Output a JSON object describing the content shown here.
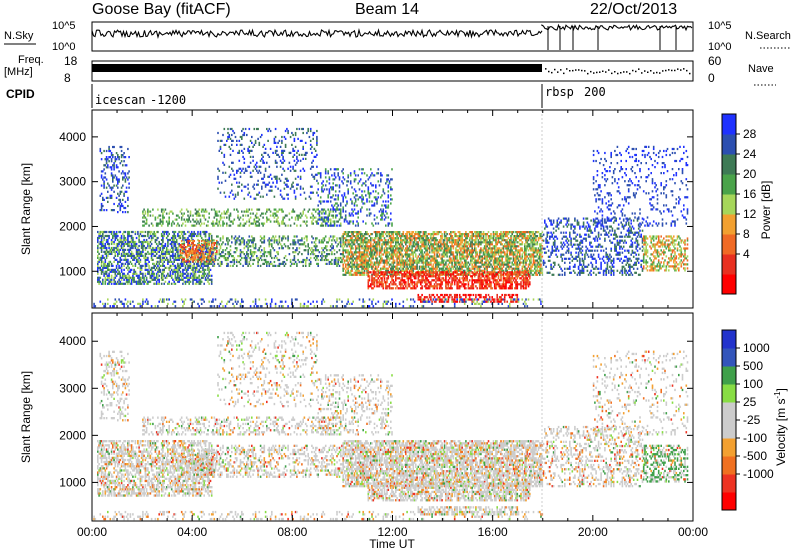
{
  "header": {
    "station": "Goose Bay (fitACF)",
    "beam": "Beam 14",
    "date": "22/Oct/2013"
  },
  "top_panels": {
    "nsky_label": "N.Sky",
    "nsearch_label": "N.Search",
    "nsky_ticks": [
      "10^5",
      "10^0"
    ],
    "nsearch_ticks": [
      "10^5",
      "10^0"
    ],
    "freq_label": "Freq.",
    "freq_unit": "[MHz]",
    "freq_ticks": [
      "18",
      "8"
    ],
    "nave_label": "Nave",
    "nave_ticks": [
      "60",
      "0"
    ],
    "cpid_label": "CPID",
    "cpid_segments": [
      {
        "name": "icescan",
        "id": "-1200"
      },
      {
        "name": "rbsp",
        "id": "200"
      }
    ]
  },
  "colors": {
    "power_scale": [
      "#1f32ff",
      "#2c4fb0",
      "#3e7a55",
      "#4aa34a",
      "#a6d65a",
      "#f2a030",
      "#f06a25",
      "#e83020",
      "#ff0000"
    ],
    "velocity_scale": [
      "#2233cc",
      "#3355bb",
      "#3fa04a",
      "#88dd44",
      "#cccccc",
      "#cccccc",
      "#f3a030",
      "#f07020",
      "#ee3322",
      "#ff0000"
    ]
  },
  "chart_data": [
    {
      "type": "heatmap",
      "title": "Power",
      "ylabel": "Slant Range [km]",
      "xlabel": "Time UT",
      "x_ticks": [
        "00:00",
        "04:00",
        "08:00",
        "12:00",
        "16:00",
        "20:00",
        "00:00"
      ],
      "y_ticks": [
        "1000",
        "2000",
        "3000",
        "4000"
      ],
      "ylim": [
        180,
        4600
      ],
      "colorbar_label": "Power [dB]",
      "colorbar_ticks": [
        "28",
        "24",
        "20",
        "16",
        "12",
        "8",
        "4"
      ]
    },
    {
      "type": "heatmap",
      "title": "Velocity",
      "ylabel": "Slant Range [km]",
      "xlabel": "Time UT",
      "x_ticks": [
        "00:00",
        "04:00",
        "08:00",
        "12:00",
        "16:00",
        "20:00",
        "00:00"
      ],
      "y_ticks": [
        "1000",
        "2000",
        "3000",
        "4000"
      ],
      "ylim": [
        180,
        4600
      ],
      "colorbar_label": "Velocity [m s",
      "colorbar_label_sup": "-1",
      "colorbar_label_end": "]",
      "colorbar_ticks": [
        "1000",
        "500",
        "100",
        "25",
        "-25",
        "-100",
        "-500",
        "-1000"
      ]
    }
  ]
}
